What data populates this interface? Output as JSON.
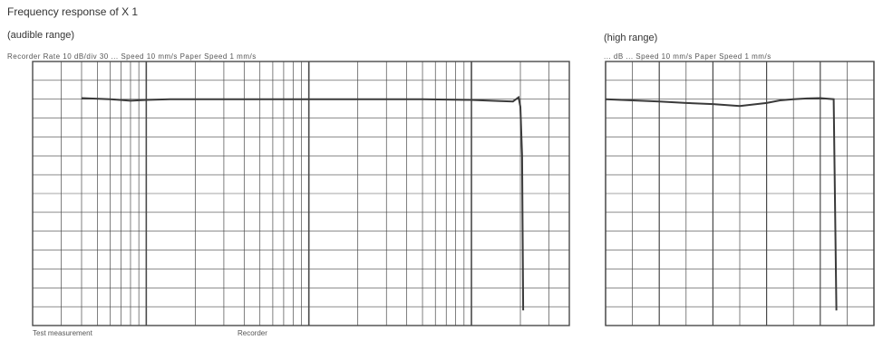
{
  "page": {
    "title": "Frequency response of X 1",
    "recorder_info_left": "Recorder Rate  10   dB/div  30   ...   Speed  10 mm/s   Paper Speed  1 mm/s",
    "recorder_info_right": "...  dB  ...  Speed  10 mm/s   Paper Speed  1 mm/s",
    "footer_left": "Test measurement",
    "footer_mid": "Recorder"
  },
  "colors": {
    "background": "#ffffff",
    "grid": "#4a4a4a",
    "trace": "#3a3a3a"
  },
  "chart_data": [
    {
      "type": "line",
      "title": "(audible range)",
      "xlabel": "",
      "ylabel": "",
      "xscale": "log",
      "xlim": [
        20,
        40000
      ],
      "ylim": [
        -60,
        10
      ],
      "grid": true,
      "series": [
        {
          "x": [
            40,
            60,
            80,
            100,
            140,
            200,
            500,
            1000,
            2000,
            5000,
            10000,
            15000,
            18000,
            19500,
            20000,
            20500,
            20800
          ],
          "values": [
            0.3,
            0,
            -0.4,
            -0.2,
            0,
            0,
            0,
            0,
            0,
            0,
            -0.2,
            -0.5,
            -0.6,
            0.5,
            -2,
            -15,
            -56
          ]
        }
      ]
    },
    {
      "type": "line",
      "title": "(high range)",
      "xlabel": "",
      "ylabel": "",
      "xscale": "linear",
      "xlim": [
        0,
        100000
      ],
      "ylim": [
        -60,
        10
      ],
      "grid": true,
      "series": [
        {
          "x": [
            0,
            10000,
            20000,
            30000,
            40000,
            50000,
            60000,
            65000,
            70000,
            75000,
            80000,
            85000,
            86000
          ],
          "values": [
            0,
            -0.3,
            -0.6,
            -1.0,
            -1.3,
            -1.8,
            -1.0,
            -0.3,
            0,
            0.2,
            0.3,
            0,
            -56
          ]
        }
      ]
    }
  ]
}
